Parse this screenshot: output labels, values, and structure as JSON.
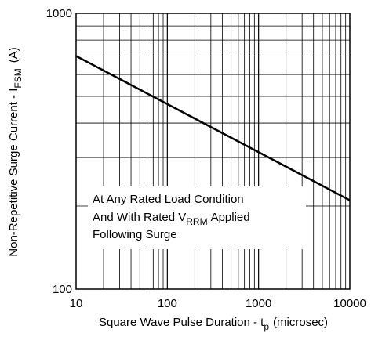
{
  "chart_data": {
    "type": "line",
    "title": "",
    "x_scale": "log",
    "y_scale": "log",
    "xlim": [
      10,
      10000
    ],
    "ylim": [
      100,
      1000
    ],
    "grid": true,
    "x_ticks": [
      "10",
      "100",
      "1000",
      "10000"
    ],
    "y_ticks": [
      "100",
      "1000"
    ],
    "xlabel": {
      "main": "Square Wave Pulse Duration - t",
      "sub": "p",
      "suffix": "(microsec)"
    },
    "ylabel": {
      "main": "Non-Repetitive Surge Current - I",
      "sub": "FSM",
      "suffix": "(A)"
    },
    "annotation": {
      "line1": "At Any Rated Load Condition",
      "line2_pre": "And With Rated V",
      "line2_sub": "RRM",
      "line2_post": "Applied",
      "line3": "Following Surge"
    },
    "series": [
      {
        "x": [
          10,
          10000
        ],
        "y": [
          700,
          210
        ]
      }
    ]
  }
}
